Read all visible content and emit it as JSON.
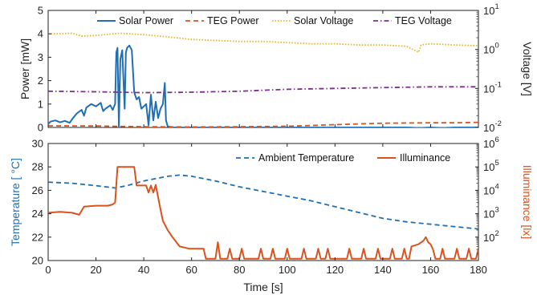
{
  "chart_data": [
    {
      "type": "line",
      "ylabel": "Power [mW]",
      "y2label": "Voltage [V]",
      "xlim": [
        0,
        180
      ],
      "ylim": [
        0,
        5
      ],
      "y2lim": [
        0.01,
        10
      ],
      "y2scale": "log",
      "yticks": [
        "0",
        "1",
        "2",
        "3",
        "4",
        "5"
      ],
      "y2ticks": [
        {
          "base": "10",
          "exp": "-2",
          "value": 0.01
        },
        {
          "base": "10",
          "exp": "-1",
          "value": 0.1
        },
        {
          "base": "10",
          "exp": "0",
          "value": 1
        },
        {
          "base": "10",
          "exp": "1",
          "value": 10
        }
      ],
      "legend_position": "top",
      "series": [
        {
          "name": "Solar Power",
          "axis": "left",
          "style": "solid",
          "color": "#1f6fb2",
          "points": [
            [
              0,
              0.15
            ],
            [
              1,
              0.25
            ],
            [
              3,
              0.3
            ],
            [
              5,
              0.22
            ],
            [
              7,
              0.28
            ],
            [
              9,
              0.2
            ],
            [
              10,
              0.35
            ],
            [
              12,
              0.6
            ],
            [
              14,
              0.75
            ],
            [
              15,
              0.5
            ],
            [
              16,
              0.85
            ],
            [
              18,
              1.0
            ],
            [
              20,
              0.9
            ],
            [
              22,
              1.05
            ],
            [
              23,
              0.7
            ],
            [
              24,
              0.8
            ],
            [
              26,
              0.95
            ],
            [
              27,
              0.75
            ],
            [
              28,
              1.0
            ],
            [
              28.5,
              3.2
            ],
            [
              29,
              3.4
            ],
            [
              29.6,
              0
            ],
            [
              30.2,
              2.9
            ],
            [
              31,
              3.3
            ],
            [
              32,
              0.8
            ],
            [
              32.5,
              3.2
            ],
            [
              33,
              3.4
            ],
            [
              34,
              3.5
            ],
            [
              35,
              3.3
            ],
            [
              36,
              1.5
            ],
            [
              37,
              1.2
            ],
            [
              38,
              1.3
            ],
            [
              39,
              0.8
            ],
            [
              40,
              0.9
            ],
            [
              41,
              1.0
            ],
            [
              42,
              0.1
            ],
            [
              43,
              1.4
            ],
            [
              44,
              0.3
            ],
            [
              45,
              1.1
            ],
            [
              46,
              0.4
            ],
            [
              47,
              0.8
            ],
            [
              48,
              1.0
            ],
            [
              48.8,
              1.9
            ],
            [
              49.3,
              0.3
            ],
            [
              50,
              0.05
            ],
            [
              52,
              0
            ],
            [
              60,
              0
            ],
            [
              80,
              0
            ],
            [
              120,
              0
            ],
            [
              150,
              0
            ],
            [
              155,
              -0.02
            ],
            [
              160,
              0
            ],
            [
              165,
              -0.02
            ],
            [
              170,
              0
            ],
            [
              180,
              0
            ]
          ]
        },
        {
          "name": "TEG Power",
          "axis": "left",
          "style": "dashed",
          "color": "#d9531e",
          "points": [
            [
              0,
              0.07
            ],
            [
              20,
              0.06
            ],
            [
              40,
              0.03
            ],
            [
              60,
              0.02
            ],
            [
              80,
              0.03
            ],
            [
              100,
              0.05
            ],
            [
              120,
              0.12
            ],
            [
              140,
              0.18
            ],
            [
              160,
              0.2
            ],
            [
              170,
              0.2
            ],
            [
              180,
              0.22
            ]
          ]
        },
        {
          "name": "Solar Voltage",
          "axis": "right",
          "style": "dotted",
          "color": "#edb120",
          "points": [
            [
              0,
              2.5
            ],
            [
              10,
              2.6
            ],
            [
              14,
              2.2
            ],
            [
              20,
              2.3
            ],
            [
              30,
              2.6
            ],
            [
              40,
              2.4
            ],
            [
              50,
              2.1
            ],
            [
              60,
              1.8
            ],
            [
              70,
              1.7
            ],
            [
              80,
              1.6
            ],
            [
              90,
              1.6
            ],
            [
              100,
              1.5
            ],
            [
              110,
              1.4
            ],
            [
              120,
              1.4
            ],
            [
              130,
              1.3
            ],
            [
              140,
              1.3
            ],
            [
              150,
              1.2
            ],
            [
              155,
              0.85
            ],
            [
              156,
              1.3
            ],
            [
              160,
              1.4
            ],
            [
              170,
              1.3
            ],
            [
              180,
              1.25
            ]
          ]
        },
        {
          "name": "TEG Voltage",
          "axis": "right",
          "style": "dashdot",
          "color": "#7e2f8e",
          "points": [
            [
              0,
              0.085
            ],
            [
              20,
              0.082
            ],
            [
              40,
              0.078
            ],
            [
              60,
              0.08
            ],
            [
              80,
              0.085
            ],
            [
              100,
              0.095
            ],
            [
              120,
              0.1
            ],
            [
              140,
              0.105
            ],
            [
              160,
              0.11
            ],
            [
              180,
              0.11
            ]
          ]
        }
      ]
    },
    {
      "type": "line",
      "xlabel": "Time [s]",
      "ylabel": "Temperature [   °C]",
      "y2label": "Illuminance [lx]",
      "xlim": [
        0,
        180
      ],
      "ylim": [
        20,
        30
      ],
      "y2lim": [
        10,
        1000000
      ],
      "y2scale": "log",
      "xticks": [
        "0",
        "20",
        "40",
        "60",
        "80",
        "100",
        "120",
        "140",
        "160",
        "180"
      ],
      "yticks": [
        "20",
        "22",
        "24",
        "26",
        "28",
        "30"
      ],
      "y2ticks": [
        {
          "base": "10",
          "exp": "2",
          "value": 100
        },
        {
          "base": "10",
          "exp": "3",
          "value": 1000
        },
        {
          "base": "10",
          "exp": "4",
          "value": 10000
        },
        {
          "base": "10",
          "exp": "5",
          "value": 100000
        },
        {
          "base": "10",
          "exp": "6",
          "value": 1000000
        }
      ],
      "legend_position": "top-right",
      "series": [
        {
          "name": "Ambient Temperature",
          "axis": "left",
          "style": "dashed",
          "color": "#1f6fb2",
          "points": [
            [
              0,
              26.7
            ],
            [
              10,
              26.6
            ],
            [
              20,
              26.4
            ],
            [
              28,
              26.2
            ],
            [
              33,
              26.4
            ],
            [
              40,
              26.8
            ],
            [
              50,
              27.2
            ],
            [
              55,
              27.3
            ],
            [
              60,
              27.2
            ],
            [
              70,
              26.8
            ],
            [
              80,
              26.3
            ],
            [
              90,
              25.9
            ],
            [
              100,
              25.5
            ],
            [
              110,
              25.1
            ],
            [
              120,
              24.6
            ],
            [
              130,
              24.1
            ],
            [
              140,
              23.6
            ],
            [
              150,
              23.3
            ],
            [
              160,
              23.1
            ],
            [
              170,
              22.9
            ],
            [
              180,
              22.7
            ]
          ]
        },
        {
          "name": "Illuminance",
          "axis": "right",
          "style": "solid",
          "color": "#d9531e",
          "points": [
            [
              0,
              1100
            ],
            [
              5,
              1200
            ],
            [
              10,
              1100
            ],
            [
              13,
              900
            ],
            [
              15,
              2000
            ],
            [
              20,
              2200
            ],
            [
              25,
              2200
            ],
            [
              27,
              2500
            ],
            [
              28,
              3000
            ],
            [
              29,
              100000
            ],
            [
              36,
              100000
            ],
            [
              37,
              16000
            ],
            [
              41,
              16000
            ],
            [
              42,
              8000
            ],
            [
              43,
              16000
            ],
            [
              44,
              8000
            ],
            [
              45,
              17000
            ],
            [
              46,
              5000
            ],
            [
              47,
              1500
            ],
            [
              48,
              500
            ],
            [
              50,
              200
            ],
            [
              52,
              100
            ],
            [
              55,
              40
            ],
            [
              59,
              32
            ],
            [
              65,
              32
            ],
            [
              66,
              12
            ],
            [
              70,
              12
            ],
            [
              71,
              60
            ],
            [
              72,
              12
            ],
            [
              75,
              12
            ],
            [
              76,
              32
            ],
            [
              77,
              12
            ],
            [
              80,
              12
            ],
            [
              81,
              32
            ],
            [
              82,
              12
            ],
            [
              88,
              12
            ],
            [
              89,
              32
            ],
            [
              90,
              12
            ],
            [
              93,
              12
            ],
            [
              94,
              32
            ],
            [
              95,
              12
            ],
            [
              99,
              12
            ],
            [
              100,
              32
            ],
            [
              101,
              12
            ],
            [
              106,
              12
            ],
            [
              107,
              32
            ],
            [
              108,
              12
            ],
            [
              112,
              12
            ],
            [
              113,
              32
            ],
            [
              114,
              12
            ],
            [
              116,
              12
            ],
            [
              117,
              32
            ],
            [
              118,
              12
            ],
            [
              125,
              12
            ],
            [
              126,
              32
            ],
            [
              127,
              12
            ],
            [
              131,
              12
            ],
            [
              132,
              32
            ],
            [
              133,
              12
            ],
            [
              137,
              12
            ],
            [
              138,
              32
            ],
            [
              139,
              12
            ],
            [
              143,
              12
            ],
            [
              144,
              32
            ],
            [
              145,
              12
            ],
            [
              148,
              12
            ],
            [
              149,
              32
            ],
            [
              150,
              12
            ],
            [
              151,
              12
            ],
            [
              152,
              40
            ],
            [
              155,
              50
            ],
            [
              157,
              70
            ],
            [
              158,
              100
            ],
            [
              159,
              60
            ],
            [
              160,
              50
            ],
            [
              161,
              30
            ],
            [
              162,
              12
            ],
            [
              164,
              12
            ],
            [
              165,
              32
            ],
            [
              166,
              12
            ],
            [
              170,
              12
            ],
            [
              171,
              32
            ],
            [
              172,
              12
            ],
            [
              175,
              12
            ],
            [
              176,
              32
            ],
            [
              177,
              12
            ],
            [
              179,
              12
            ],
            [
              180,
              32
            ]
          ]
        }
      ]
    }
  ]
}
